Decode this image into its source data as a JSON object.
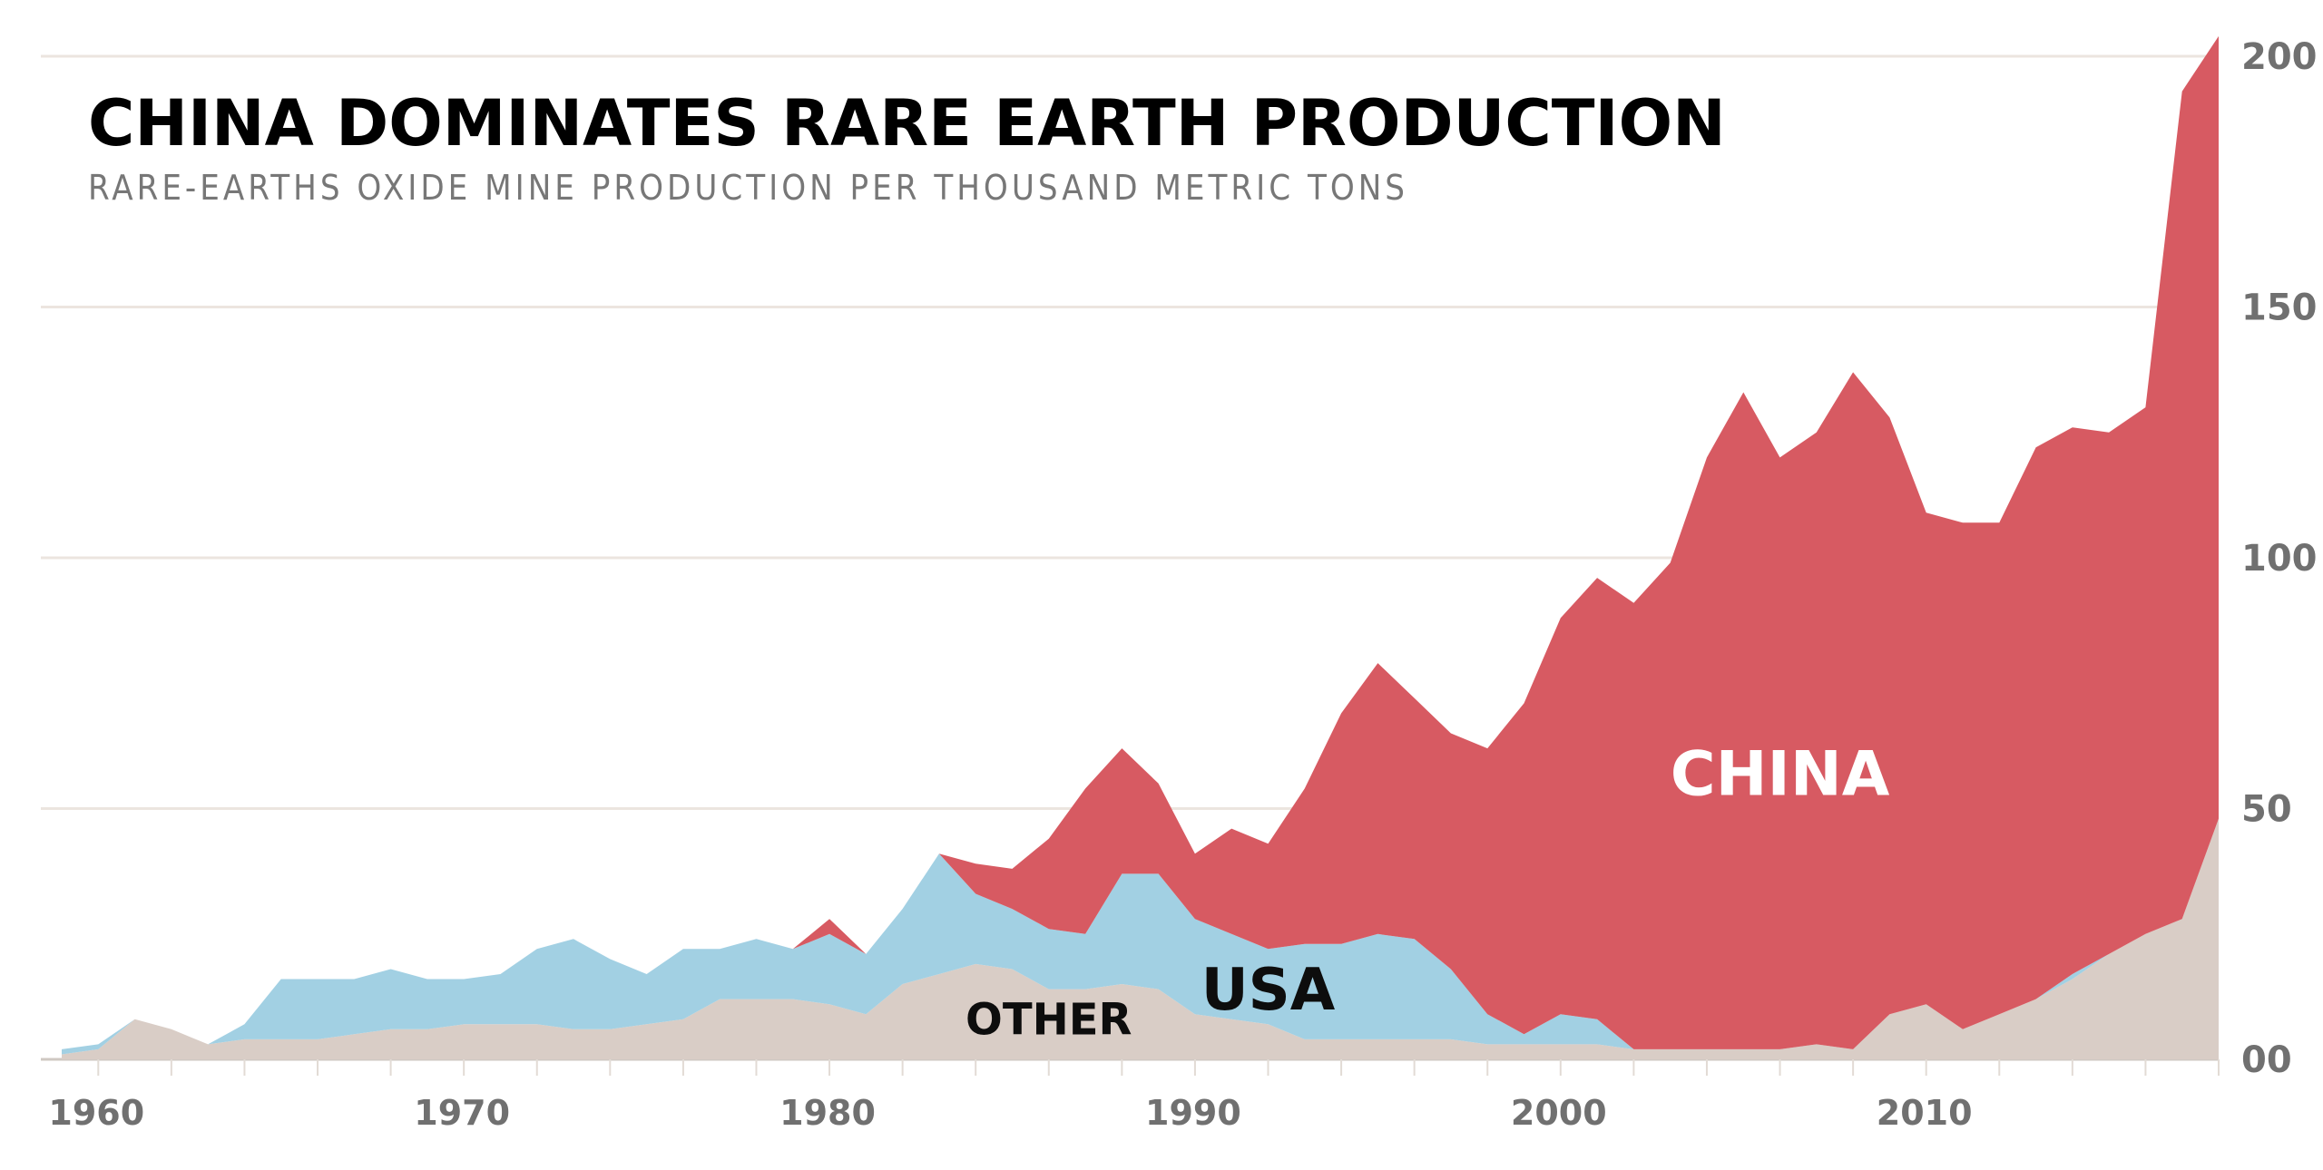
{
  "chart_data": {
    "type": "area",
    "stacked": true,
    "title": "CHINA DOMINATES RARE EARTH PRODUCTION",
    "subtitle": "RARE-EARTHS OXIDE MINE PRODUCTION PER THOUSAND METRIC TONS",
    "xlim": [
      1959,
      2018
    ],
    "ylim": [
      0,
      210
    ],
    "x_ticks": [
      1960,
      1970,
      1980,
      1990,
      2000,
      2010
    ],
    "y_ticks": [
      {
        "value": 0,
        "label": "00"
      },
      {
        "value": 50,
        "label": "50"
      },
      {
        "value": 100,
        "label": "100"
      },
      {
        "value": 150,
        "label": "150"
      },
      {
        "value": 200,
        "label": "200"
      }
    ],
    "y_axis_side": "right",
    "grid": "horizontal",
    "x": [
      1959,
      1960,
      1961,
      1962,
      1963,
      1964,
      1965,
      1966,
      1967,
      1968,
      1969,
      1970,
      1971,
      1972,
      1973,
      1974,
      1975,
      1976,
      1977,
      1978,
      1979,
      1980,
      1981,
      1982,
      1983,
      1984,
      1985,
      1986,
      1987,
      1988,
      1989,
      1990,
      1991,
      1992,
      1993,
      1994,
      1995,
      1996,
      1997,
      1998,
      1999,
      2000,
      2001,
      2002,
      2003,
      2004,
      2005,
      2006,
      2007,
      2008,
      2009,
      2010,
      2011,
      2012,
      2013,
      2014,
      2015,
      2016,
      2017,
      2018
    ],
    "series": [
      {
        "name": "OTHER",
        "color": "#d9cdc6",
        "values": [
          1,
          2,
          8,
          6,
          3,
          4,
          4,
          4,
          5,
          6,
          6,
          7,
          7,
          7,
          6,
          6,
          7,
          8,
          12,
          12,
          12,
          11,
          9,
          15,
          17,
          19,
          18,
          14,
          14,
          15,
          14,
          9,
          8,
          7,
          4,
          4,
          4,
          4,
          4,
          3,
          3,
          3,
          3,
          2,
          2,
          2,
          2,
          2,
          3,
          2,
          9,
          11,
          6,
          9,
          12,
          16,
          21,
          25,
          28,
          48
        ]
      },
      {
        "name": "USA",
        "color": "#a2d0e3",
        "values": [
          1,
          1,
          0,
          0,
          0,
          3,
          12,
          12,
          11,
          12,
          10,
          9,
          10,
          15,
          18,
          14,
          10,
          14,
          10,
          12,
          10,
          14,
          12,
          15,
          24,
          14,
          12,
          12,
          11,
          22,
          23,
          19,
          17,
          15,
          19,
          19,
          21,
          20,
          14,
          6,
          2,
          6,
          5,
          0,
          0,
          0,
          0,
          0,
          0,
          0,
          0,
          0,
          0,
          0,
          0,
          1,
          0,
          0,
          0,
          0
        ]
      },
      {
        "name": "CHINA",
        "color": "#d75a62",
        "values": [
          0,
          0,
          0,
          0,
          0,
          0,
          0,
          0,
          0,
          0,
          0,
          0,
          0,
          0,
          0,
          0,
          0,
          0,
          0,
          0,
          0,
          3,
          0,
          0,
          0,
          6,
          8,
          18,
          29,
          25,
          18,
          13,
          21,
          21,
          31,
          46,
          54,
          48,
          47,
          53,
          66,
          79,
          88,
          89,
          97,
          118,
          131,
          118,
          122,
          135,
          119,
          98,
          101,
          98,
          110,
          109,
          104,
          105,
          165,
          156
        ]
      }
    ],
    "annotations": [
      {
        "text": "CHINA",
        "x": 2006,
        "y": 57
      },
      {
        "text": "USA",
        "x": 1992,
        "y": 14
      },
      {
        "text": "OTHER",
        "x": 1986,
        "y": 8
      }
    ]
  }
}
